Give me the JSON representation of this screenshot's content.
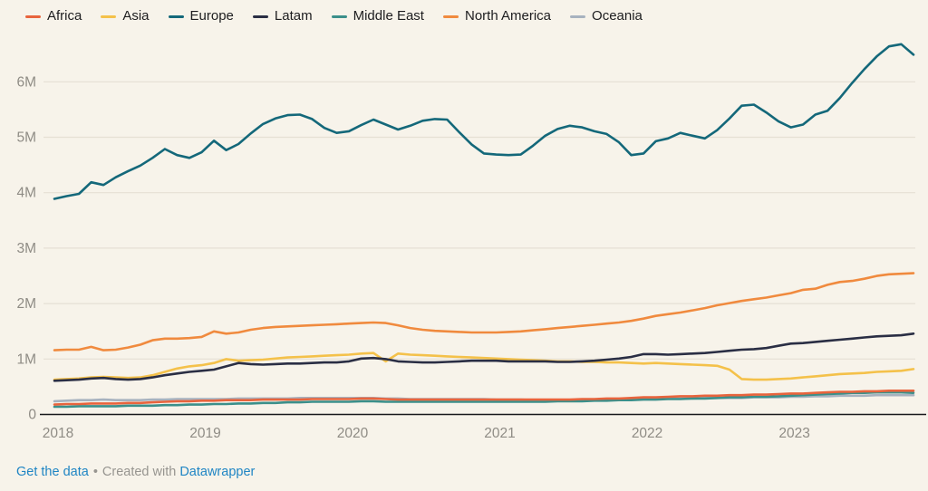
{
  "colors": {
    "background": "#f7f3ea",
    "gridline": "#e6e0d4",
    "baseline": "#18191c",
    "tick_text": "#8f8c85",
    "legend_text": "#1d1d1f",
    "link_blue": "#1f85c4",
    "footer_gray": "#979590"
  },
  "legend": {
    "items": [
      {
        "label": "Africa",
        "color": "#e8643d"
      },
      {
        "label": "Asia",
        "color": "#f4c14a"
      },
      {
        "label": "Europe",
        "color": "#14687a"
      },
      {
        "label": "Latam",
        "color": "#2a2e44"
      },
      {
        "label": "Middle East",
        "color": "#3b8f8a"
      },
      {
        "label": "North America",
        "color": "#f08a3e"
      },
      {
        "label": "Oceania",
        "color": "#a7b2bf"
      }
    ]
  },
  "chart_data": {
    "type": "line",
    "title": "",
    "xlabel": "",
    "ylabel": "",
    "x_start": "2018-01",
    "x_interval": "monthly",
    "x_tick_labels": [
      "2018",
      "2019",
      "2020",
      "2021",
      "2022",
      "2023"
    ],
    "x_tick_month_index": [
      0,
      12,
      24,
      36,
      48,
      60
    ],
    "y_tick_labels": [
      "0",
      "1M",
      "2M",
      "3M",
      "4M",
      "5M",
      "6M"
    ],
    "y_tick_values": [
      0,
      1,
      2,
      3,
      4,
      5,
      6
    ],
    "ylim": [
      0,
      6.8
    ],
    "unit": "millions",
    "grid": "horizontal",
    "legend_position": "top",
    "draw_order": [
      "Oceania",
      "Middle East",
      "Africa",
      "Asia",
      "Latam",
      "North America",
      "Europe"
    ],
    "series": [
      {
        "name": "Africa",
        "color": "#e8643d",
        "values": [
          0.17,
          0.18,
          0.18,
          0.19,
          0.19,
          0.19,
          0.2,
          0.2,
          0.21,
          0.22,
          0.23,
          0.23,
          0.24,
          0.24,
          0.25,
          0.25,
          0.25,
          0.26,
          0.26,
          0.26,
          0.26,
          0.27,
          0.27,
          0.27,
          0.27,
          0.28,
          0.28,
          0.27,
          0.26,
          0.26,
          0.26,
          0.26,
          0.26,
          0.26,
          0.26,
          0.26,
          0.26,
          0.26,
          0.26,
          0.26,
          0.26,
          0.26,
          0.26,
          0.27,
          0.27,
          0.28,
          0.28,
          0.29,
          0.3,
          0.3,
          0.31,
          0.32,
          0.32,
          0.33,
          0.33,
          0.34,
          0.34,
          0.35,
          0.35,
          0.36,
          0.37,
          0.37,
          0.38,
          0.39,
          0.4,
          0.4,
          0.41,
          0.41,
          0.42,
          0.42,
          0.42
        ]
      },
      {
        "name": "Asia",
        "color": "#f4c14a",
        "values": [
          0.62,
          0.63,
          0.64,
          0.66,
          0.67,
          0.66,
          0.65,
          0.66,
          0.7,
          0.76,
          0.82,
          0.86,
          0.88,
          0.92,
          0.99,
          0.96,
          0.97,
          0.98,
          1.0,
          1.02,
          1.03,
          1.04,
          1.05,
          1.06,
          1.07,
          1.09,
          1.1,
          0.95,
          1.09,
          1.07,
          1.06,
          1.05,
          1.04,
          1.03,
          1.02,
          1.01,
          1.0,
          0.99,
          0.98,
          0.97,
          0.96,
          0.95,
          0.95,
          0.94,
          0.94,
          0.93,
          0.93,
          0.92,
          0.91,
          0.92,
          0.91,
          0.9,
          0.89,
          0.88,
          0.87,
          0.8,
          0.63,
          0.62,
          0.62,
          0.63,
          0.64,
          0.66,
          0.68,
          0.7,
          0.72,
          0.73,
          0.74,
          0.76,
          0.77,
          0.78,
          0.81
        ]
      },
      {
        "name": "Europe",
        "color": "#14687a",
        "values": [
          3.88,
          3.93,
          3.97,
          4.18,
          4.13,
          4.27,
          4.38,
          4.48,
          4.62,
          4.78,
          4.67,
          4.62,
          4.72,
          4.93,
          4.76,
          4.87,
          5.06,
          5.23,
          5.33,
          5.39,
          5.4,
          5.32,
          5.16,
          5.07,
          5.1,
          5.21,
          5.31,
          5.22,
          5.13,
          5.2,
          5.29,
          5.32,
          5.31,
          5.08,
          4.86,
          4.7,
          4.68,
          4.67,
          4.68,
          4.84,
          5.02,
          5.14,
          5.2,
          5.17,
          5.1,
          5.05,
          4.9,
          4.67,
          4.7,
          4.92,
          4.97,
          5.07,
          5.02,
          4.97,
          5.12,
          5.33,
          5.56,
          5.58,
          5.44,
          5.28,
          5.17,
          5.22,
          5.4,
          5.47,
          5.7,
          5.97,
          6.22,
          6.45,
          6.63,
          6.67,
          6.48
        ]
      },
      {
        "name": "Latam",
        "color": "#2a2e44",
        "values": [
          0.6,
          0.61,
          0.62,
          0.64,
          0.65,
          0.63,
          0.62,
          0.63,
          0.66,
          0.7,
          0.73,
          0.76,
          0.78,
          0.8,
          0.86,
          0.92,
          0.9,
          0.89,
          0.9,
          0.91,
          0.91,
          0.92,
          0.93,
          0.93,
          0.95,
          1.0,
          1.01,
          0.99,
          0.95,
          0.94,
          0.93,
          0.93,
          0.94,
          0.95,
          0.96,
          0.96,
          0.96,
          0.95,
          0.95,
          0.95,
          0.95,
          0.94,
          0.94,
          0.95,
          0.96,
          0.98,
          1.0,
          1.03,
          1.08,
          1.08,
          1.07,
          1.08,
          1.09,
          1.1,
          1.12,
          1.14,
          1.16,
          1.17,
          1.19,
          1.23,
          1.27,
          1.28,
          1.3,
          1.32,
          1.34,
          1.36,
          1.38,
          1.4,
          1.41,
          1.42,
          1.45
        ]
      },
      {
        "name": "Middle East",
        "color": "#3b8f8a",
        "values": [
          0.13,
          0.13,
          0.14,
          0.14,
          0.14,
          0.14,
          0.15,
          0.15,
          0.15,
          0.16,
          0.16,
          0.17,
          0.17,
          0.18,
          0.18,
          0.19,
          0.19,
          0.2,
          0.2,
          0.21,
          0.21,
          0.22,
          0.22,
          0.22,
          0.22,
          0.23,
          0.23,
          0.22,
          0.22,
          0.22,
          0.22,
          0.22,
          0.22,
          0.22,
          0.22,
          0.22,
          0.22,
          0.22,
          0.22,
          0.22,
          0.22,
          0.23,
          0.23,
          0.23,
          0.24,
          0.24,
          0.25,
          0.25,
          0.26,
          0.26,
          0.27,
          0.27,
          0.28,
          0.28,
          0.29,
          0.3,
          0.3,
          0.31,
          0.31,
          0.32,
          0.33,
          0.34,
          0.35,
          0.36,
          0.37,
          0.38,
          0.38,
          0.39,
          0.39,
          0.39,
          0.38
        ]
      },
      {
        "name": "North America",
        "color": "#f08a3e",
        "values": [
          1.15,
          1.16,
          1.16,
          1.21,
          1.15,
          1.16,
          1.2,
          1.25,
          1.33,
          1.36,
          1.36,
          1.37,
          1.39,
          1.49,
          1.45,
          1.47,
          1.52,
          1.55,
          1.57,
          1.58,
          1.59,
          1.6,
          1.61,
          1.62,
          1.63,
          1.64,
          1.65,
          1.64,
          1.6,
          1.55,
          1.52,
          1.5,
          1.49,
          1.48,
          1.47,
          1.47,
          1.47,
          1.48,
          1.49,
          1.51,
          1.53,
          1.55,
          1.57,
          1.59,
          1.61,
          1.63,
          1.65,
          1.68,
          1.72,
          1.77,
          1.8,
          1.83,
          1.87,
          1.91,
          1.96,
          2.0,
          2.04,
          2.07,
          2.1,
          2.14,
          2.18,
          2.24,
          2.26,
          2.33,
          2.38,
          2.4,
          2.44,
          2.49,
          2.52,
          2.53,
          2.54
        ]
      },
      {
        "name": "Oceania",
        "color": "#a7b2bf",
        "values": [
          0.23,
          0.24,
          0.25,
          0.25,
          0.26,
          0.25,
          0.25,
          0.25,
          0.26,
          0.26,
          0.27,
          0.27,
          0.27,
          0.27,
          0.27,
          0.28,
          0.28,
          0.28,
          0.28,
          0.28,
          0.29,
          0.29,
          0.29,
          0.29,
          0.29,
          0.29,
          0.29,
          0.28,
          0.28,
          0.27,
          0.27,
          0.27,
          0.27,
          0.27,
          0.27,
          0.27,
          0.26,
          0.26,
          0.26,
          0.25,
          0.25,
          0.25,
          0.25,
          0.26,
          0.26,
          0.26,
          0.26,
          0.27,
          0.27,
          0.27,
          0.28,
          0.28,
          0.28,
          0.29,
          0.29,
          0.29,
          0.29,
          0.3,
          0.3,
          0.3,
          0.31,
          0.31,
          0.32,
          0.32,
          0.33,
          0.33,
          0.33,
          0.34,
          0.34,
          0.34,
          0.34
        ]
      }
    ]
  },
  "footer": {
    "get_data_label": "Get the data",
    "separator": "•",
    "created_with_label": "Created with",
    "datawrapper_label": "Datawrapper"
  }
}
